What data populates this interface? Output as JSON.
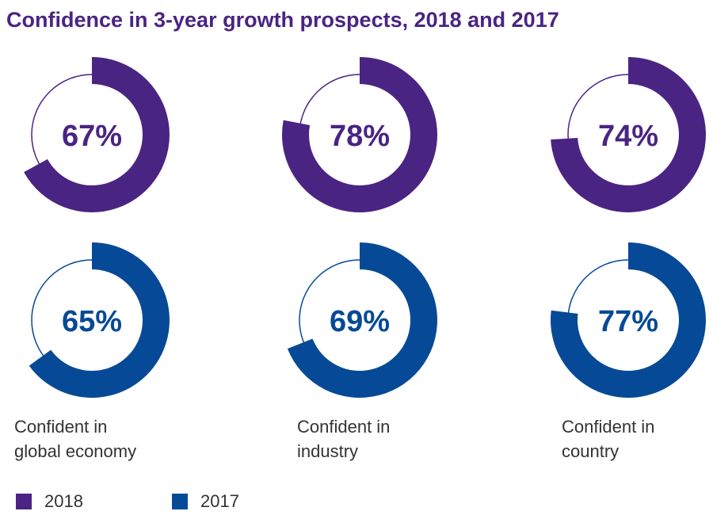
{
  "title": "Confidence in 3-year growth prospects, 2018 and 2017",
  "colors": {
    "series_2018": "#4a2483",
    "series_2017": "#064a97"
  },
  "chart_data": {
    "type": "pie",
    "title": "Confidence in 3-year growth prospects, 2018 and 2017",
    "categories": [
      "Confident in global economy",
      "Confident in industry",
      "Confident in country"
    ],
    "category_labels": [
      "Confident in\nglobal economy",
      "Confident in\nindustry",
      "Confident in\ncountry"
    ],
    "series": [
      {
        "name": "2018",
        "values": [
          67,
          78,
          74
        ],
        "labels": [
          "67%",
          "78%",
          "74%"
        ]
      },
      {
        "name": "2017",
        "values": [
          65,
          69,
          77
        ],
        "labels": [
          "65%",
          "69%",
          "77%"
        ]
      }
    ],
    "unit": "%",
    "legend_position": "bottom-left"
  },
  "legend": [
    {
      "label": "2018"
    },
    {
      "label": "2017"
    }
  ]
}
